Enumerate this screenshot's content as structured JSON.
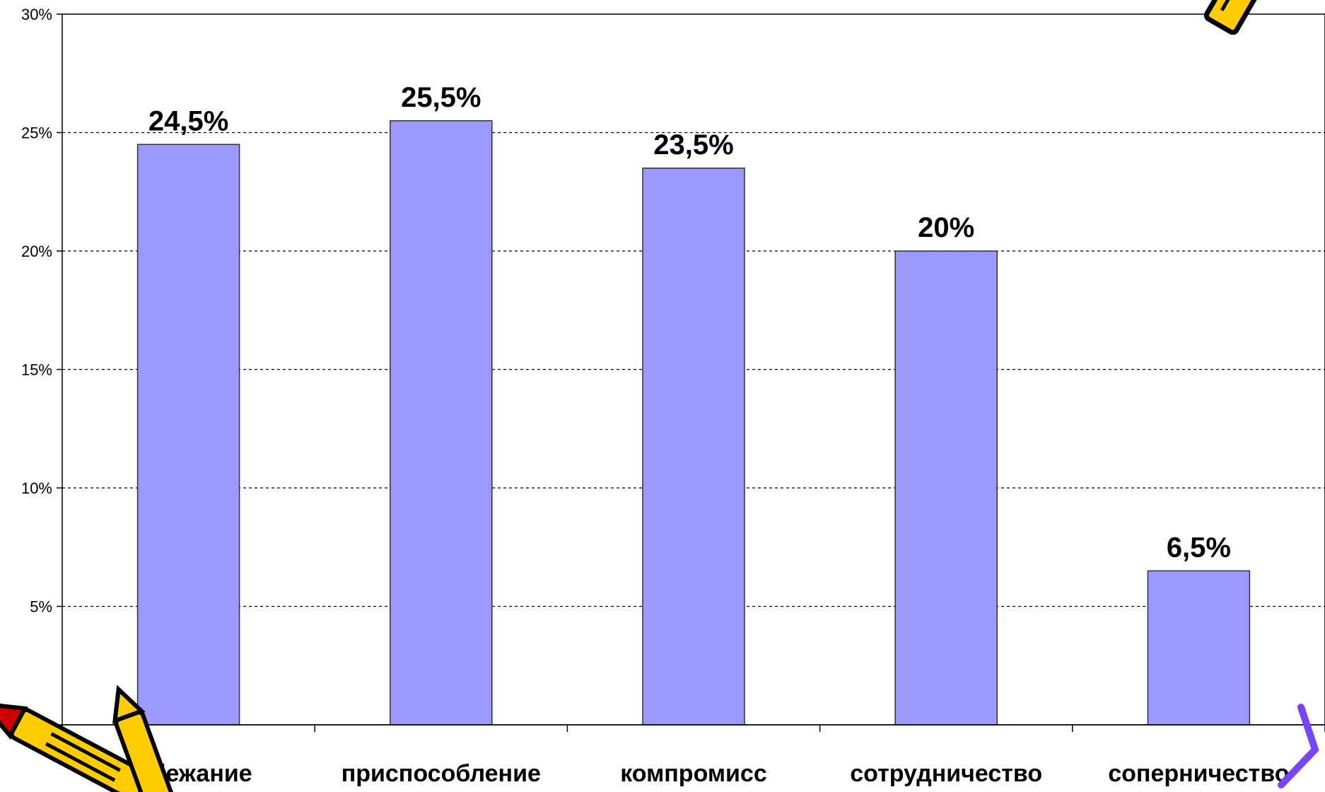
{
  "chart_data": {
    "type": "bar",
    "categories": [
      "избежание",
      "приспособление",
      "компромисс",
      "сотрудничество",
      "соперничество"
    ],
    "values": [
      24.5,
      25.5,
      23.5,
      20,
      6.5
    ],
    "data_labels": [
      "24,5%",
      "25,5%",
      "23,5%",
      "20%",
      "6,5%"
    ],
    "y_ticks": [
      0,
      5,
      10,
      15,
      20,
      25,
      30
    ],
    "y_tick_labels": [
      "0%",
      "5%",
      "10%",
      "15%",
      "20%",
      "25%",
      "30%"
    ],
    "ylim": [
      0,
      30
    ],
    "grid": true,
    "grid_style": "dashed",
    "legend": "none",
    "bar_color": "#9999FF",
    "bar_stroke": "#333333"
  },
  "decorations": {
    "pencil_color": "#FFCC00",
    "pencil_tip_color": "#CC0000",
    "pencil_accent_color": "#7744FF"
  }
}
